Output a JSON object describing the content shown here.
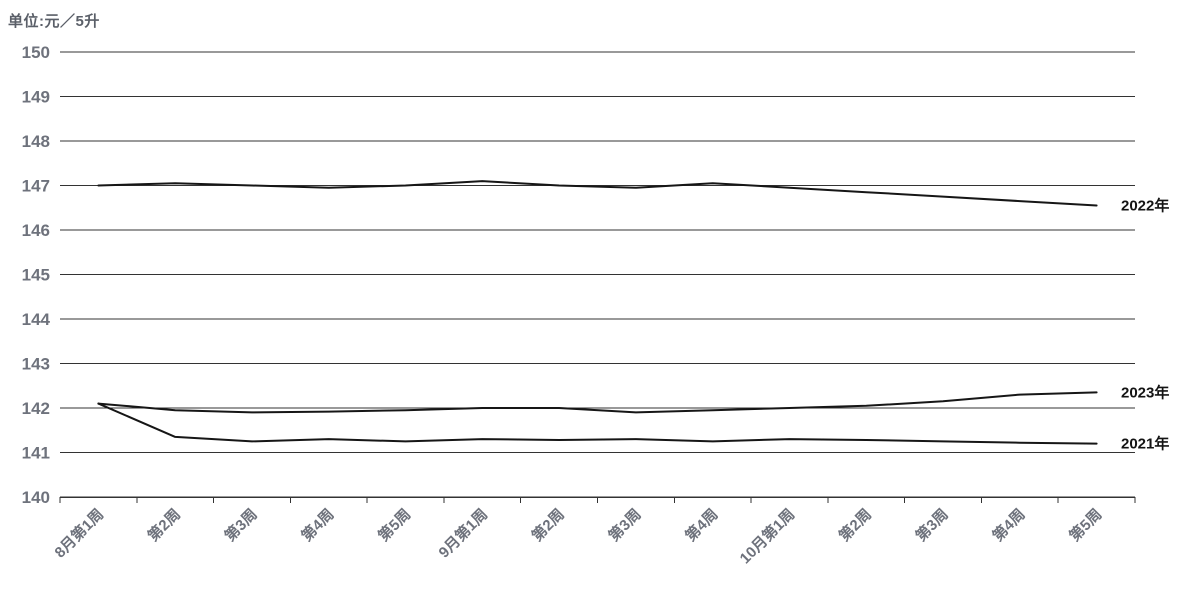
{
  "chart_data": {
    "type": "line",
    "title": "单位:元／5升",
    "categories": [
      "8月第1周",
      "第2周",
      "第3周",
      "第4周",
      "第5周",
      "9月第1周",
      "第2周",
      "第3周",
      "第4周",
      "10月第1周",
      "第2周",
      "第3周",
      "第4周",
      "第5周"
    ],
    "series": [
      {
        "name": "2022年",
        "values": [
          147.0,
          147.05,
          147.0,
          146.95,
          147.0,
          147.1,
          147.0,
          146.95,
          147.05,
          146.95,
          146.85,
          146.75,
          146.65,
          146.55
        ]
      },
      {
        "name": "2023年",
        "values": [
          142.1,
          141.95,
          141.9,
          141.92,
          141.95,
          142.0,
          142.0,
          141.9,
          141.95,
          142.0,
          142.05,
          142.15,
          142.3,
          142.35
        ]
      },
      {
        "name": "2021年",
        "values": [
          142.1,
          141.35,
          141.25,
          141.3,
          141.25,
          141.3,
          141.28,
          141.3,
          141.25,
          141.3,
          141.28,
          141.25,
          141.22,
          141.2
        ]
      }
    ],
    "xlabel": "",
    "ylabel": "单位:元／5升",
    "ylim": [
      140,
      150
    ],
    "ytick_step": 1,
    "yticks": [
      "140",
      "141",
      "142",
      "143",
      "144",
      "145",
      "146",
      "147",
      "148",
      "149",
      "150"
    ],
    "grid": true,
    "legend_position": "end-labels-right",
    "colors": {
      "background": "#ffffff",
      "gridline": "#333333",
      "series_line": "#161616",
      "axis_text": "#6e727c",
      "title_text": "#5a5f68",
      "end_label_text": "#141414"
    }
  }
}
